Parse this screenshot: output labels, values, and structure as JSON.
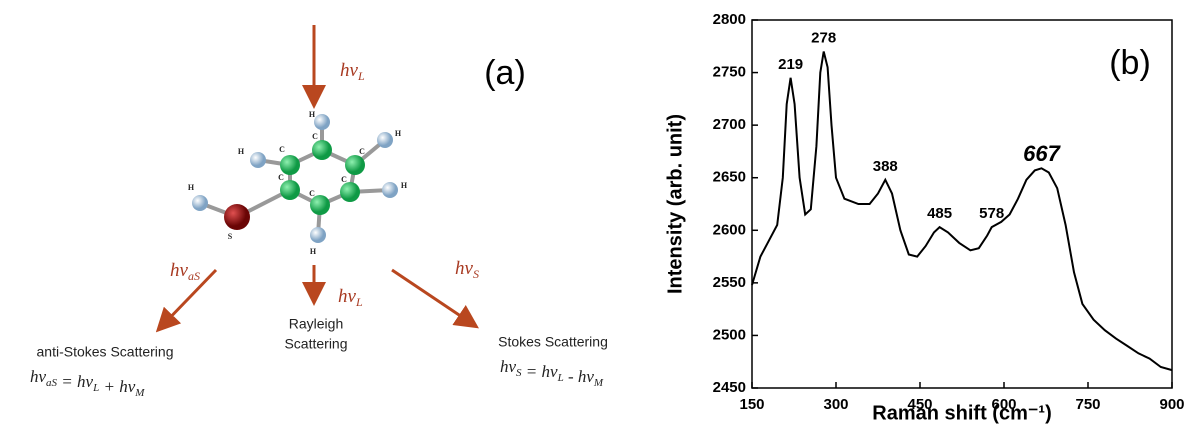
{
  "diagram": {
    "panel_label": "(a)",
    "photons": {
      "incident": {
        "main": "hν",
        "sub": "L"
      },
      "anti_stokes": {
        "main": "hν",
        "sub": "aS"
      },
      "rayleigh": {
        "main": "hν",
        "sub": "L"
      },
      "stokes": {
        "main": "hν",
        "sub": "S"
      }
    },
    "anti_stokes_label": "anti-Stokes Scattering",
    "anti_stokes_equation": [
      [
        "hν",
        "aS"
      ],
      " = ",
      [
        "hν",
        "L"
      ],
      " + ",
      [
        "hν",
        "M"
      ]
    ],
    "rayleigh_label": [
      "Rayleigh",
      "Scattering"
    ],
    "stokes_label": "Stokes Scattering",
    "stokes_equation": [
      [
        "hν",
        "S"
      ],
      " = ",
      [
        "hν",
        "L"
      ],
      " - ",
      [
        "hν",
        "M"
      ]
    ],
    "atom_labels": [
      "C",
      "C",
      "C",
      "C",
      "C",
      "C",
      "H",
      "H",
      "H",
      "H",
      "H",
      "H",
      "S"
    ]
  },
  "chart_data": {
    "type": "line",
    "panel_label": "(b)",
    "x_label": "Raman shift (cm⁻¹)",
    "y_label": "Intensity (arb. unit)",
    "color": "#000000",
    "x": [
      150,
      165,
      180,
      195,
      205,
      212,
      219,
      226,
      235,
      245,
      255,
      265,
      272,
      278,
      285,
      292,
      300,
      315,
      340,
      360,
      375,
      388,
      400,
      415,
      430,
      445,
      460,
      475,
      485,
      500,
      520,
      540,
      555,
      570,
      578,
      595,
      610,
      625,
      640,
      655,
      667,
      680,
      695,
      710,
      725,
      740,
      760,
      780,
      800,
      820,
      840,
      860,
      880,
      900
    ],
    "values": [
      2548,
      2575,
      2590,
      2605,
      2650,
      2720,
      2745,
      2720,
      2650,
      2615,
      2620,
      2680,
      2750,
      2770,
      2755,
      2700,
      2650,
      2630,
      2625,
      2625,
      2635,
      2648,
      2635,
      2600,
      2577,
      2575,
      2585,
      2598,
      2603,
      2598,
      2588,
      2581,
      2583,
      2595,
      2603,
      2608,
      2615,
      2630,
      2648,
      2657,
      2659,
      2655,
      2640,
      2605,
      2560,
      2530,
      2515,
      2505,
      2497,
      2490,
      2483,
      2478,
      2470,
      2467
    ],
    "annotations": [
      {
        "text": "219",
        "x": 219,
        "y": 2745
      },
      {
        "text": "278",
        "x": 278,
        "y": 2770
      },
      {
        "text": "388",
        "x": 388,
        "y": 2648
      },
      {
        "text": "485",
        "x": 485,
        "y": 2603
      },
      {
        "text": "578",
        "x": 578,
        "y": 2603
      },
      {
        "text": "667",
        "x": 667,
        "y": 2659
      }
    ],
    "xlim": [
      150,
      900
    ],
    "xticks": [
      150,
      300,
      450,
      600,
      750,
      900
    ],
    "ylim": [
      2450,
      2800
    ],
    "yticks": [
      2450,
      2500,
      2550,
      2600,
      2650,
      2700,
      2750,
      2800
    ]
  }
}
